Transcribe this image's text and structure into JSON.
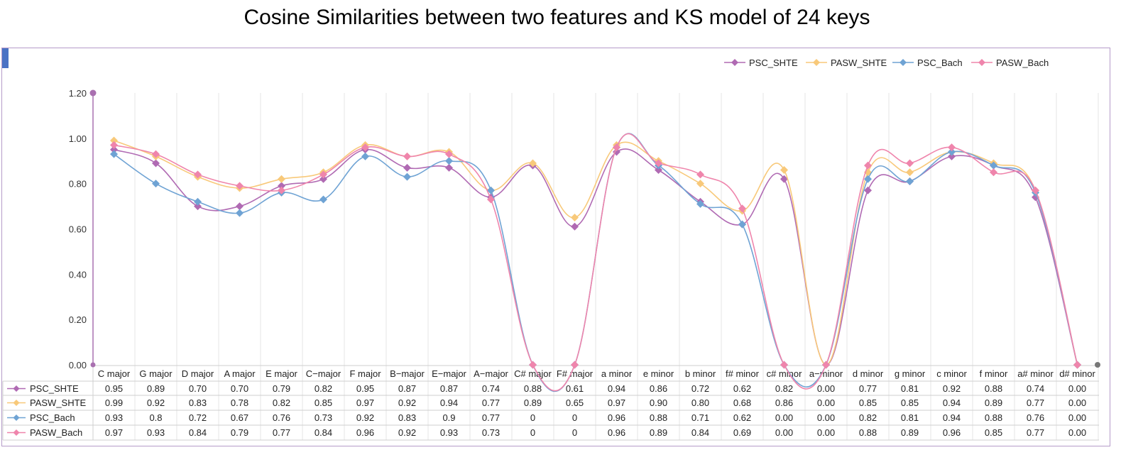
{
  "chart_data": {
    "type": "line",
    "title": "Cosine Similarities between two features and KS model of 24 keys",
    "xlabel": "",
    "ylabel": "",
    "ylim": [
      0,
      1.2
    ],
    "y_ticks": [
      "0.00",
      "0.20",
      "0.40",
      "0.60",
      "0.80",
      "1.00",
      "1.20"
    ],
    "grid": "vertical",
    "legend_position": "top-right",
    "categories": [
      "C major",
      "G major",
      "D major",
      "A major",
      "E major",
      "C−major",
      "F major",
      "B−major",
      "E−major",
      "A−major",
      "C# major",
      "F# major",
      "a minor",
      "e minor",
      "b minor",
      "f# minor",
      "c# minor",
      "a−minor",
      "d minor",
      "g minor",
      "c minor",
      "f minor",
      "a# minor",
      "d# minor"
    ],
    "series": [
      {
        "name": "PSC_SHTE",
        "color": "#b06ab3",
        "values": [
          0.95,
          0.89,
          0.7,
          0.7,
          0.79,
          0.82,
          0.95,
          0.87,
          0.87,
          0.74,
          0.88,
          0.61,
          0.94,
          0.86,
          0.72,
          0.62,
          0.82,
          0.0,
          0.77,
          0.81,
          0.92,
          0.88,
          0.74,
          0.0
        ],
        "labels": [
          "0.95",
          "0.89",
          "0.70",
          "0.70",
          "0.79",
          "0.82",
          "0.95",
          "0.87",
          "0.87",
          "0.74",
          "0.88",
          "0.61",
          "0.94",
          "0.86",
          "0.72",
          "0.62",
          "0.82",
          "0.00",
          "0.77",
          "0.81",
          "0.92",
          "0.88",
          "0.74",
          "0.00"
        ]
      },
      {
        "name": "PASW_SHTE",
        "color": "#f8c97a",
        "values": [
          0.99,
          0.92,
          0.83,
          0.78,
          0.82,
          0.85,
          0.97,
          0.92,
          0.94,
          0.77,
          0.89,
          0.65,
          0.97,
          0.9,
          0.8,
          0.68,
          0.86,
          0.0,
          0.85,
          0.85,
          0.94,
          0.89,
          0.77,
          0.0
        ],
        "labels": [
          "0.99",
          "0.92",
          "0.83",
          "0.78",
          "0.82",
          "0.85",
          "0.97",
          "0.92",
          "0.94",
          "0.77",
          "0.89",
          "0.65",
          "0.97",
          "0.90",
          "0.80",
          "0.68",
          "0.86",
          "0.00",
          "0.85",
          "0.85",
          "0.94",
          "0.89",
          "0.77",
          "0.00"
        ]
      },
      {
        "name": "PSC_Bach",
        "color": "#6fa3d4",
        "values": [
          0.93,
          0.8,
          0.72,
          0.67,
          0.76,
          0.73,
          0.92,
          0.83,
          0.9,
          0.77,
          0,
          0,
          0.96,
          0.88,
          0.71,
          0.62,
          0.0,
          0.0,
          0.82,
          0.81,
          0.94,
          0.88,
          0.76,
          0.0
        ],
        "labels": [
          "0.93",
          "0.8",
          "0.72",
          "0.67",
          "0.76",
          "0.73",
          "0.92",
          "0.83",
          "0.9",
          "0.77",
          "0",
          "0",
          "0.96",
          "0.88",
          "0.71",
          "0.62",
          "0.00",
          "0.00",
          "0.82",
          "0.81",
          "0.94",
          "0.88",
          "0.76",
          "0.00"
        ]
      },
      {
        "name": "PASW_Bach",
        "color": "#ef85ac",
        "values": [
          0.97,
          0.93,
          0.84,
          0.79,
          0.77,
          0.84,
          0.96,
          0.92,
          0.93,
          0.73,
          0,
          0,
          0.96,
          0.89,
          0.84,
          0.69,
          0.0,
          0.0,
          0.88,
          0.89,
          0.96,
          0.85,
          0.77,
          0.0
        ],
        "labels": [
          "0.97",
          "0.93",
          "0.84",
          "0.79",
          "0.77",
          "0.84",
          "0.96",
          "0.92",
          "0.93",
          "0.73",
          "0",
          "0",
          "0.96",
          "0.89",
          "0.84",
          "0.69",
          "0.00",
          "0.00",
          "0.88",
          "0.89",
          "0.96",
          "0.85",
          "0.77",
          "0.00"
        ]
      }
    ]
  }
}
